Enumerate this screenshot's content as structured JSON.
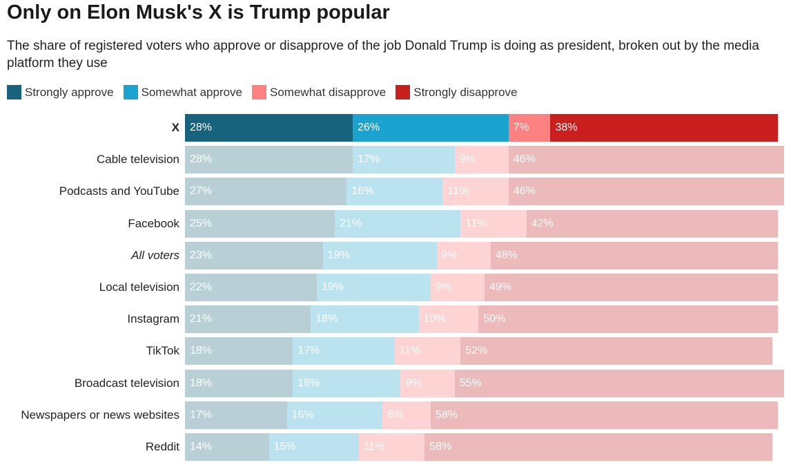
{
  "title": "Only on Elon Musk's X is Trump popular",
  "subtitle": "The share of registered voters who approve or disapprove of the job Donald Trump is doing as president, broken out by the media platform they use",
  "chart_data": {
    "type": "bar",
    "orientation": "horizontal-stacked-100",
    "title": "Only on Elon Musk's X is Trump popular",
    "legend_position": "top-left",
    "grid": false,
    "categories": [
      "X",
      "Cable television",
      "Podcasts and YouTube",
      "Facebook",
      "All voters",
      "Local television",
      "Instagram",
      "TikTok",
      "Broadcast television",
      "Newspapers or news websites",
      "Reddit"
    ],
    "highlighted": "X",
    "italic": "All voters",
    "series": [
      {
        "name": "Strongly approve",
        "color": "#17627d",
        "faded_color": "#b8cfd6",
        "values": [
          28,
          28,
          27,
          25,
          23,
          22,
          21,
          18,
          18,
          17,
          14
        ]
      },
      {
        "name": "Somewhat approve",
        "color": "#1ba3cf",
        "faded_color": "#bae3ef",
        "values": [
          26,
          17,
          16,
          21,
          19,
          19,
          18,
          17,
          18,
          16,
          15
        ]
      },
      {
        "name": "Somewhat disapprove",
        "color": "#fe8181",
        "faded_color": "#fdd3d3",
        "values": [
          7,
          9,
          11,
          11,
          9,
          9,
          10,
          11,
          9,
          8,
          11
        ]
      },
      {
        "name": "Strongly disapprove",
        "color": "#c91f1f",
        "faded_color": "#ecbaba",
        "values": [
          38,
          46,
          46,
          42,
          48,
          49,
          50,
          52,
          55,
          58,
          58
        ]
      }
    ]
  }
}
